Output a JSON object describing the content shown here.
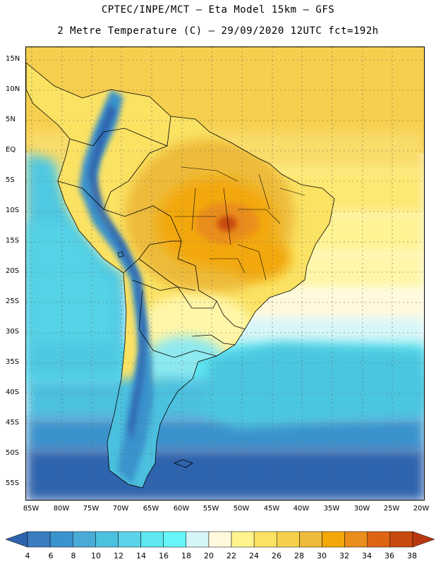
{
  "title": {
    "line1": "CPTEC/INPE/MCT –  Eta Model 15km – GFS",
    "line2": "2 Metre Temperature (C) – 29/09/2020 12UTC fct=192h"
  },
  "map": {
    "region": "South America",
    "variable": "2 Metre Temperature",
    "units": "C",
    "lat_labels": [
      "15N",
      "10N",
      "5N",
      "EQ",
      "5S",
      "10S",
      "15S",
      "20S",
      "25S",
      "30S",
      "35S",
      "40S",
      "45S",
      "50S",
      "55S"
    ],
    "lon_labels": [
      "85W",
      "80W",
      "75W",
      "70W",
      "65W",
      "60W",
      "55W",
      "50W",
      "45W",
      "40W",
      "35W",
      "30W",
      "25W",
      "20W"
    ]
  },
  "legend": {
    "labels": [
      "4",
      "6",
      "8",
      "10",
      "12",
      "14",
      "16",
      "18",
      "20",
      "22",
      "24",
      "26",
      "28",
      "30",
      "32",
      "34",
      "36",
      "38"
    ],
    "colors": [
      "#2f63ad",
      "#3b7cc0",
      "#3a93cc",
      "#4aabd8",
      "#4cc0df",
      "#5bd3e8",
      "#5ee7ef",
      "#66f6f8",
      "#d5f5f8",
      "#fff8dc",
      "#fff38e",
      "#fbe263",
      "#f6d04b",
      "#eebb3a",
      "#f2a808",
      "#ea8d1d",
      "#dd6412",
      "#c84a10",
      "#b8390f"
    ]
  }
}
